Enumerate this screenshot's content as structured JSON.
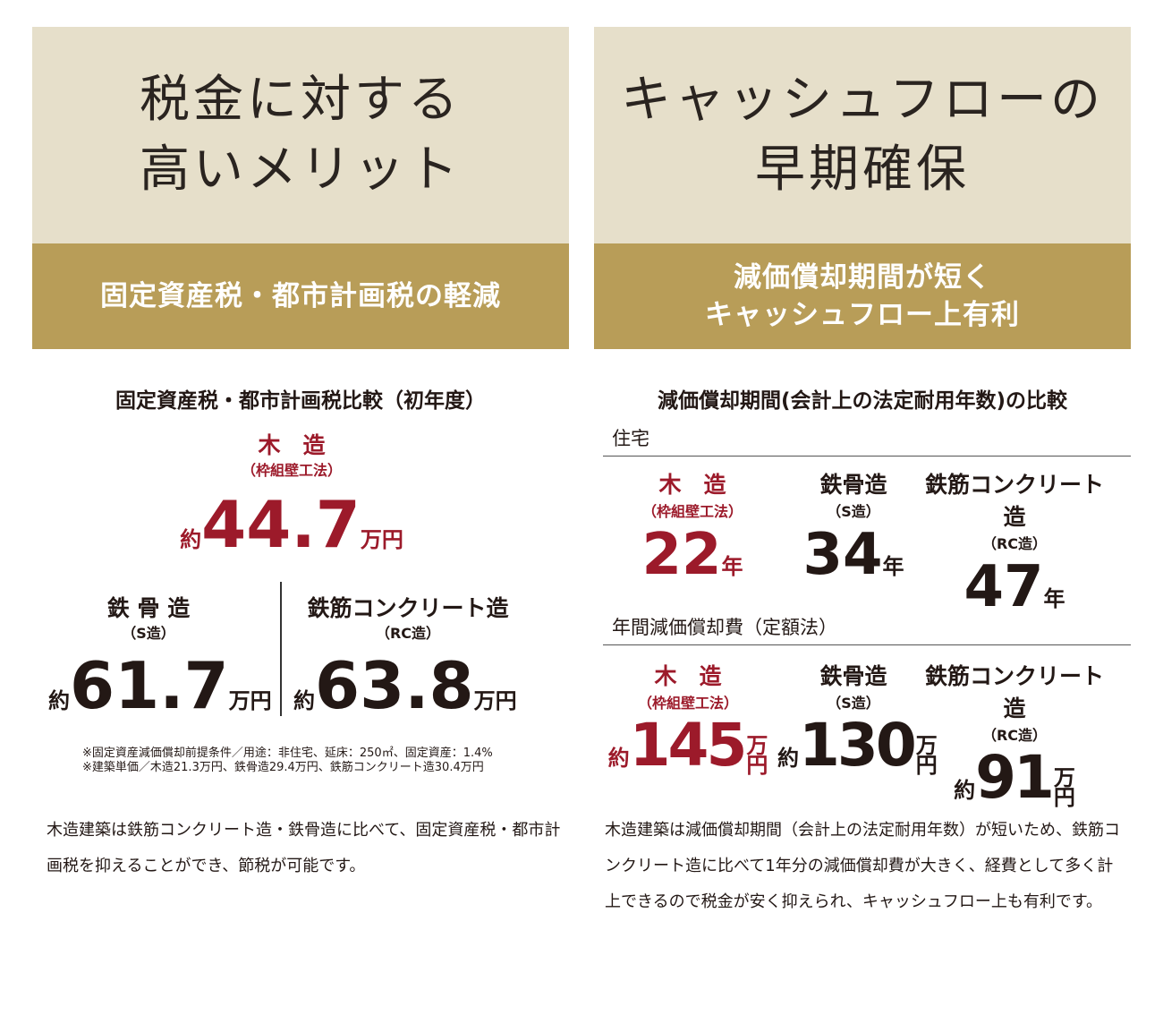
{
  "colors": {
    "header_bg": "#e6dfca",
    "band_bg": "#b89d58",
    "accent_red": "#9c1a2a",
    "text": "#231815"
  },
  "left": {
    "title_lines": [
      "税金に対する",
      "高いメリット"
    ],
    "band": "固定資産税・都市計画税の軽減",
    "subtitle": "固定資産税・都市計画税比較（初年度）",
    "wood": {
      "label": "木　造",
      "sub": "（枠組壁工法）",
      "prefix": "約",
      "value": "44.7",
      "unit": "万円"
    },
    "steel": {
      "label": "鉄 骨 造",
      "sub": "（S造）",
      "prefix": "約",
      "value": "61.7",
      "unit": "万円"
    },
    "rc": {
      "label": "鉄筋コンクリート造",
      "sub": "（RC造）",
      "prefix": "約",
      "value": "63.8",
      "unit": "万円"
    },
    "notes": [
      "※固定資産減価償却前提条件／用途：非住宅、延床：250㎡、固定資産：1.4%",
      "※建築単価／木造21.3万円、鉄骨造29.4万円、鉄筋コンクリート造30.4万円"
    ],
    "body": "木造建築は鉄筋コンクリート造・鉄骨造に比べて、固定資産税・都市計画税を抑えることができ、節税が可能です。"
  },
  "right": {
    "title_lines": [
      "キャッシュフローの",
      "早期確保"
    ],
    "band_lines": [
      "減価償却期間が短く",
      "キャッシュフロー上有利"
    ],
    "subtitle": "減価償却期間(会計上の法定耐用年数)の比較",
    "section1": "住宅",
    "years": [
      {
        "label": "木　造",
        "sub": "（枠組壁工法）",
        "value": "22",
        "unit": "年"
      },
      {
        "label": "鉄骨造",
        "sub": "（S造）",
        "value": "34",
        "unit": "年"
      },
      {
        "label": "鉄筋コンクリート造",
        "sub": "（RC造）",
        "value": "47",
        "unit": "年"
      }
    ],
    "section2": "年間減価償却費（定額法）",
    "costs": [
      {
        "label": "木　造",
        "sub": "（枠組壁工法）",
        "prefix": "約",
        "value": "145",
        "unit_top": "万",
        "unit_bottom": "円"
      },
      {
        "label": "鉄骨造",
        "sub": "（S造）",
        "prefix": "約",
        "value": "130",
        "unit_top": "万",
        "unit_bottom": "円"
      },
      {
        "label": "鉄筋コンクリート造",
        "sub": "（RC造）",
        "prefix": "約",
        "value": "91",
        "unit_top": "万",
        "unit_bottom": "円"
      }
    ],
    "body": "木造建築は減価償却期間（会計上の法定耐用年数）が短いため、鉄筋コンクリート造に比べて1年分の減価償却費が大きく、経費として多く計上できるので税金が安く抑えられ、キャッシュフロー上も有利です。"
  }
}
